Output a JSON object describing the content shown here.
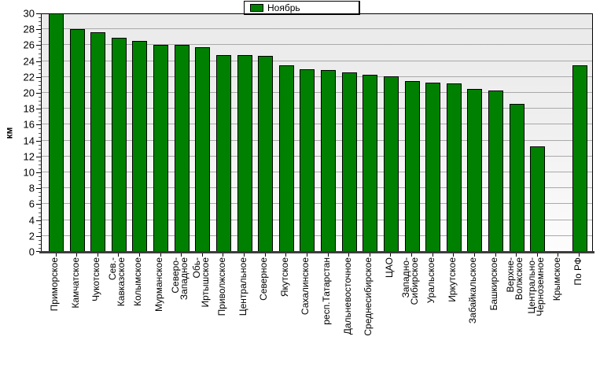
{
  "legend": {
    "label": "Ноябрь",
    "swatch_color": "#008000"
  },
  "y_axis": {
    "title": "км",
    "tick_labels": [
      "0",
      "2",
      "4",
      "6",
      "8",
      "10",
      "12",
      "14",
      "16",
      "18",
      "20",
      "22",
      "24",
      "26",
      "28",
      "30"
    ]
  },
  "chart_data": {
    "type": "bar",
    "title": "",
    "xlabel": "",
    "ylabel": "км",
    "legend_entries": [
      "Ноябрь"
    ],
    "legend_position": "top-center",
    "ylim": [
      0,
      30
    ],
    "y_tick_step": 2,
    "grid": true,
    "bar_color": "#008000",
    "bar_border_color": "#000000",
    "categories": [
      "Приморское",
      "Камчатское",
      "Чукотское",
      "Сев.-\nКавказское",
      "Колымское",
      "Мурманское",
      "Северо-\nЗападное",
      "Обь-\nИртышское",
      "Приволжское",
      "Центральное",
      "Северное",
      "Якутское",
      "Сахалинское",
      "респ.Татарстан",
      "Дальневосточное",
      "Среднесибирское",
      "ЦАО",
      "Западно-\nСибирское",
      "Уральское",
      "Иркутское",
      "Забайкальское",
      "Башкирское",
      "Верхне-\nВолжское",
      "Центрально-\nЧерноземное",
      "Крымское",
      "По РФ"
    ],
    "values": [
      30.0,
      28.0,
      27.6,
      26.9,
      26.5,
      26.0,
      26.0,
      25.7,
      24.8,
      24.8,
      24.7,
      23.5,
      23.0,
      22.9,
      22.6,
      22.3,
      22.1,
      21.5,
      21.3,
      21.2,
      20.5,
      20.3,
      18.6,
      13.3,
      0,
      23.5
    ]
  }
}
